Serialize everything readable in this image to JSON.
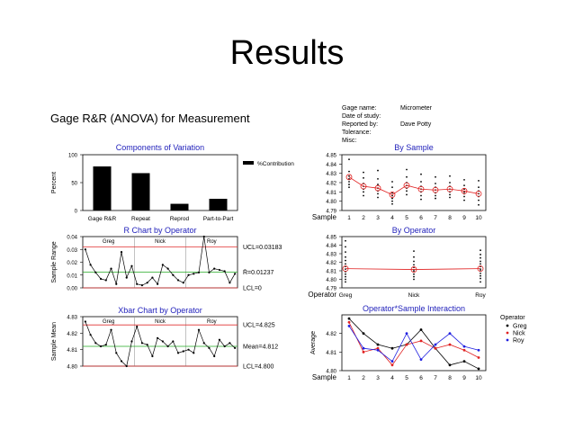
{
  "slide": {
    "title": "Results"
  },
  "report": {
    "title": "Gage R&R (ANOVA) for Measurement"
  },
  "gage_info": [
    {
      "label": "Gage name:",
      "value": "Micrometer"
    },
    {
      "label": "Date of study:",
      "value": ""
    },
    {
      "label": "Reported by:",
      "value": "Dave Potty"
    },
    {
      "label": "Tolerance:",
      "value": ""
    },
    {
      "label": "Misc:",
      "value": ""
    }
  ],
  "colors": {
    "title_blue": "#2222bb",
    "ucl_red": "#e03030",
    "mean_green": "#22aa22",
    "series_red": "#e02020"
  },
  "chart_data": [
    {
      "id": "components",
      "type": "bar",
      "title": "Components of Variation",
      "ylabel": "Percent",
      "ylim": [
        0,
        100
      ],
      "yticks": [
        0,
        50,
        100
      ],
      "categories": [
        "Gage R&R",
        "Repeat",
        "Reprod",
        "Part-to-Part"
      ],
      "series": [
        {
          "name": "%Contribution",
          "values": [
            79,
            67,
            12,
            21
          ]
        }
      ]
    },
    {
      "id": "by-sample",
      "type": "scatter",
      "title": "By Sample",
      "xlabel": "Sample",
      "ylim": [
        4.79,
        4.85
      ],
      "yticks": [
        4.79,
        4.8,
        4.81,
        4.82,
        4.83,
        4.84,
        4.85
      ],
      "x": [
        1,
        2,
        3,
        4,
        5,
        6,
        7,
        8,
        9,
        10
      ],
      "means": [
        4.826,
        4.816,
        4.814,
        4.807,
        4.817,
        4.813,
        4.812,
        4.813,
        4.811,
        4.808
      ],
      "points": [
        [
          4.845,
          4.832,
          4.827,
          4.824,
          4.821,
          4.818,
          4.815
        ],
        [
          4.831,
          4.825,
          4.819,
          4.816,
          4.813,
          4.81,
          4.806
        ],
        [
          4.833,
          4.824,
          4.818,
          4.814,
          4.811,
          4.808,
          4.804
        ],
        [
          4.821,
          4.815,
          4.809,
          4.806,
          4.803,
          4.8,
          4.797
        ],
        [
          4.834,
          4.826,
          4.82,
          4.817,
          4.814,
          4.811,
          4.807
        ],
        [
          4.829,
          4.821,
          4.816,
          4.813,
          4.81,
          4.806,
          4.802
        ],
        [
          4.826,
          4.819,
          4.815,
          4.812,
          4.809,
          4.806,
          4.803
        ],
        [
          4.827,
          4.82,
          4.816,
          4.813,
          4.81,
          4.807,
          4.804
        ],
        [
          4.823,
          4.817,
          4.813,
          4.81,
          4.808,
          4.805,
          4.801
        ],
        [
          4.822,
          4.815,
          4.811,
          4.808,
          4.805,
          4.801,
          4.796
        ]
      ]
    },
    {
      "id": "r-chart",
      "type": "line",
      "title": "R Chart by Operator",
      "ylabel": "Sample Range",
      "ylim": [
        0,
        0.04
      ],
      "yticks": [
        0.0,
        0.01,
        0.02,
        0.03,
        0.04
      ],
      "operators": [
        "Greg",
        "Nick",
        "Roy"
      ],
      "values": [
        0.03,
        0.018,
        0.012,
        0.007,
        0.006,
        0.015,
        0.003,
        0.028,
        0.008,
        0.017,
        0.003,
        0.002,
        0.004,
        0.008,
        0.003,
        0.018,
        0.015,
        0.01,
        0.006,
        0.004,
        0.01,
        0.011,
        0.012,
        0.04,
        0.012,
        0.015,
        0.014,
        0.013,
        0.004,
        0.011
      ],
      "ucl": 0.03183,
      "center": 0.01237,
      "lcl": 0,
      "ucl_label": "UCL=0.03183",
      "center_label": "R̄=0.01237",
      "lcl_label": "LCL=0"
    },
    {
      "id": "by-operator",
      "type": "scatter",
      "title": "By Operator",
      "xlabel": "Operator",
      "ylim": [
        4.79,
        4.85
      ],
      "yticks": [
        4.79,
        4.8,
        4.81,
        4.82,
        4.83,
        4.84,
        4.85
      ],
      "categories": [
        "Greg",
        "Nick",
        "Roy"
      ],
      "means": [
        4.8125,
        4.8115,
        4.8125
      ],
      "points": [
        [
          4.845,
          4.838,
          4.832,
          4.826,
          4.822,
          4.818,
          4.815,
          4.812,
          4.809,
          4.806,
          4.803,
          4.8,
          4.797
        ],
        [
          4.833,
          4.826,
          4.821,
          4.817,
          4.814,
          4.811,
          4.809,
          4.806,
          4.803,
          4.8
        ],
        [
          4.834,
          4.829,
          4.825,
          4.821,
          4.818,
          4.815,
          4.812,
          4.81,
          4.807,
          4.804,
          4.801,
          4.797
        ]
      ]
    },
    {
      "id": "xbar-chart",
      "type": "line",
      "title": "Xbar Chart by Operator",
      "ylabel": "Sample Mean",
      "ylim": [
        4.8,
        4.83
      ],
      "yticks": [
        4.8,
        4.81,
        4.82,
        4.83
      ],
      "operators": [
        "Greg",
        "Nick",
        "Roy"
      ],
      "values": [
        4.827,
        4.819,
        4.814,
        4.812,
        4.813,
        4.822,
        4.808,
        4.803,
        4.8,
        4.815,
        4.824,
        4.814,
        4.813,
        4.806,
        4.817,
        4.815,
        4.812,
        4.815,
        4.808,
        4.809,
        4.81,
        4.808,
        4.822,
        4.814,
        4.811,
        4.806,
        4.816,
        4.812,
        4.814,
        4.811
      ],
      "ucl": 4.825,
      "center": 4.812,
      "lcl": 4.8,
      "ucl_label": "UCL=4.825",
      "center_label": "Mean=4.812",
      "lcl_label": "LCL=4.800"
    },
    {
      "id": "interaction",
      "type": "line",
      "title": "Operator*Sample Interaction",
      "xlabel": "Sample",
      "ylabel": "Average",
      "ylim": [
        4.8,
        4.83
      ],
      "yticks": [
        4.8,
        4.81,
        4.82
      ],
      "x": [
        1,
        2,
        3,
        4,
        5,
        6,
        7,
        8,
        9,
        10
      ],
      "legend_title": "Operator",
      "series": [
        {
          "name": "Greg",
          "color": "#000000",
          "values": [
            4.828,
            4.82,
            4.814,
            4.812,
            4.814,
            4.822,
            4.812,
            4.803,
            4.805,
            4.801
          ]
        },
        {
          "name": "Nick",
          "color": "#e02020",
          "values": [
            4.826,
            4.81,
            4.812,
            4.803,
            4.814,
            4.816,
            4.812,
            4.814,
            4.811,
            4.807
          ]
        },
        {
          "name": "Roy",
          "color": "#2020e0",
          "values": [
            4.824,
            4.812,
            4.811,
            4.805,
            4.82,
            4.806,
            4.814,
            4.82,
            4.813,
            4.811
          ]
        }
      ]
    }
  ]
}
